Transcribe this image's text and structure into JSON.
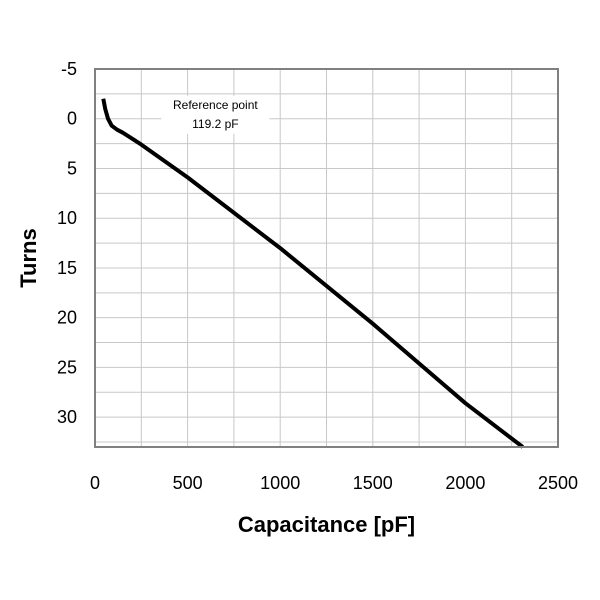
{
  "chart_data": {
    "type": "line",
    "xlabel": "Capacitance [pF]",
    "ylabel": "Turns",
    "xlim": [
      0,
      2500
    ],
    "ylim": [
      -5,
      33
    ],
    "y_inverted": true,
    "grid": true,
    "x_ticks": [
      0,
      500,
      1000,
      1500,
      2000,
      2500
    ],
    "y_ticks": [
      -5,
      0,
      5,
      10,
      15,
      20,
      25,
      30
    ],
    "x_minor_step": 250,
    "y_minor_step": 2.5,
    "series": [
      {
        "x": [
          45,
          55,
          70,
          90,
          119.2,
          150,
          200,
          250,
          500,
          1000,
          1500,
          2000,
          2310
        ],
        "y": [
          -2,
          -1,
          0,
          0.7,
          1.1,
          1.4,
          2.0,
          2.6,
          5.9,
          13.0,
          20.6,
          28.6,
          33
        ]
      }
    ],
    "annotation": {
      "line1": "Reference point",
      "line2": "119.2 pF",
      "x": 650,
      "y": -1
    }
  }
}
